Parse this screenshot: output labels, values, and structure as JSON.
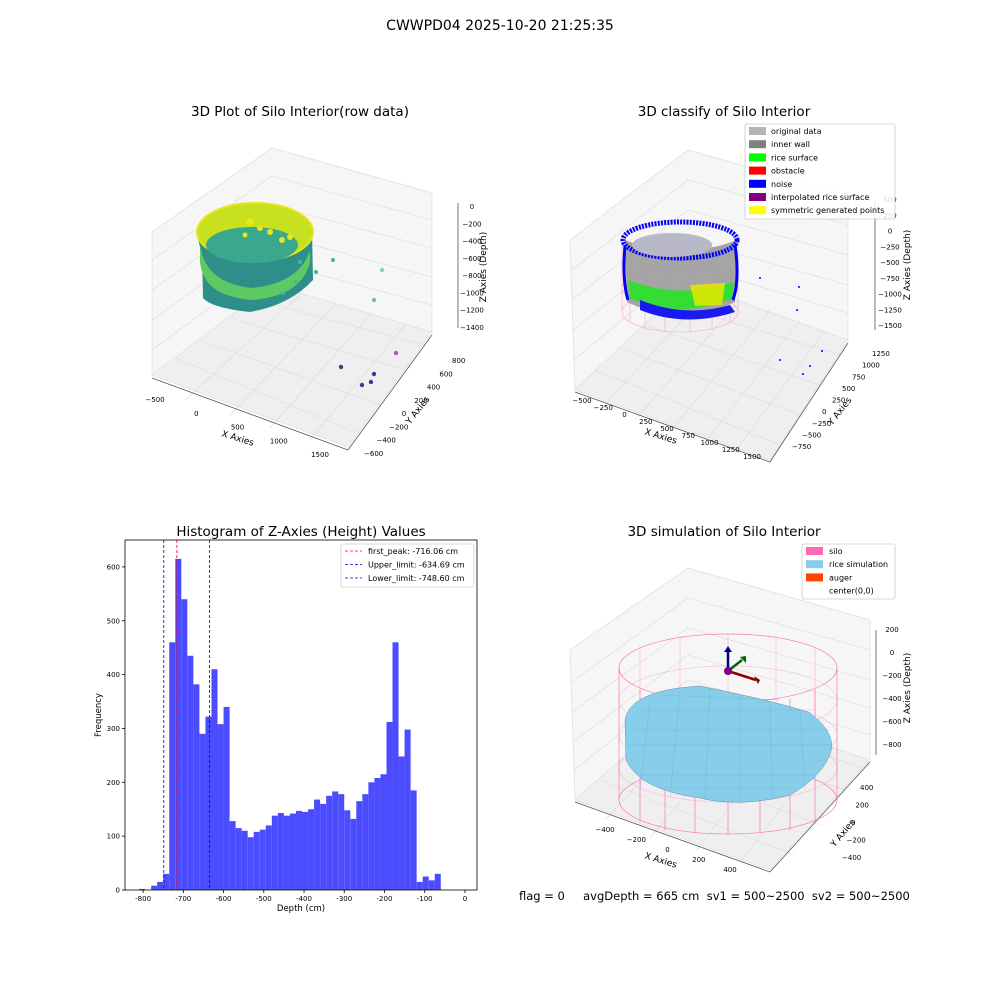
{
  "figure": {
    "suptitle": "CWWPD04 2025-10-20 21:25:35",
    "footer": "flag = 0     avgDepth = 665 cm  sv1 = 500~2500  sv2 = 500~2500"
  },
  "colors": {
    "hist_bar": "#4c4cff",
    "first_peak_line": "#ff0000",
    "limit_line": "#0000cc",
    "original_data": "#b3b3b3",
    "inner_wall": "#808080",
    "rice_surface": "#00ff00",
    "obstacle": "#ff0000",
    "noise": "#0000ff",
    "interpolated_rice_surface": "#800080",
    "symmetric_generated_points": "#ffff00",
    "silo": "#ff69b4",
    "rice_simulation": "#87ceeb",
    "auger": "#ff4500"
  },
  "chart_data": [
    {
      "type": "scatter",
      "projection": "3d",
      "title": "3D Plot of Silo Interior(row data)",
      "xlabel": "X Axies",
      "ylabel": "Y Axies",
      "zlabel": "Z Axies (Depth)",
      "x_ticks": [
        "−500",
        "0",
        "500",
        "1000",
        "1500"
      ],
      "y_ticks": [
        "−600",
        "−400",
        "−200",
        "0",
        "200",
        "400",
        "600",
        "800"
      ],
      "z_ticks": [
        "0",
        "−200",
        "−400",
        "−600",
        "−800",
        "−1000",
        "−1200",
        "−1400"
      ],
      "colormap": "viridis",
      "grid": true
    },
    {
      "type": "scatter",
      "projection": "3d",
      "title": "3D classify of Silo Interior",
      "xlabel": "X Axies",
      "ylabel": "Y Axies",
      "zlabel": "Z Axies (Depth)",
      "x_ticks": [
        "−500",
        "−250",
        "0",
        "250",
        "500",
        "750",
        "1000",
        "1250",
        "1500"
      ],
      "y_ticks": [
        "−750",
        "−500",
        "−250",
        "0",
        "250",
        "500",
        "750",
        "1000",
        "1250"
      ],
      "z_ticks": [
        "500",
        "250",
        "0",
        "−250",
        "−500",
        "−750",
        "−1000",
        "−1250",
        "−1500"
      ],
      "legend": [
        "original data",
        "inner wall",
        "rice surface",
        "obstacle",
        "noise",
        "interpolated rice surface",
        "symmetric generated points"
      ],
      "legend_position": "top-right",
      "grid": true
    },
    {
      "type": "bar",
      "title": "Histogram of Z-Axies (Height) Values",
      "xlabel": "Depth (cm)",
      "ylabel": "Frequency",
      "xlim": [
        -845,
        30
      ],
      "ylim": [
        0,
        650
      ],
      "x_ticks": [
        -800,
        -700,
        -600,
        -500,
        -400,
        -300,
        -200,
        -100,
        0
      ],
      "y_ticks": [
        0,
        100,
        200,
        300,
        400,
        500,
        600
      ],
      "bins_start": -810,
      "bin_width": 15,
      "values": [
        2,
        0,
        8,
        15,
        30,
        460,
        615,
        540,
        435,
        382,
        290,
        322,
        410,
        308,
        340,
        128,
        115,
        110,
        98,
        108,
        112,
        120,
        138,
        143,
        138,
        142,
        147,
        145,
        150,
        168,
        160,
        175,
        183,
        178,
        148,
        132,
        165,
        178,
        200,
        208,
        215,
        312,
        460,
        248,
        298,
        185,
        15,
        25,
        18,
        30
      ],
      "vlines": [
        {
          "label": "first_peak: -716.06 cm",
          "x": -716.06
        },
        {
          "label": "Upper_limit: -634.69 cm",
          "x": -634.69
        },
        {
          "label": "Lower_limit: -748.60 cm",
          "x": -748.6
        }
      ],
      "legend_position": "top-right"
    },
    {
      "type": "surface",
      "projection": "3d",
      "title": "3D simulation of Silo Interior",
      "xlabel": "X Axies",
      "ylabel": "Y Axies",
      "zlabel": "Z Axies (Depth)",
      "x_ticks": [
        "−400",
        "−200",
        "0",
        "200",
        "400"
      ],
      "y_ticks": [
        "−400",
        "−200",
        "0",
        "200",
        "400"
      ],
      "z_ticks": [
        "200",
        "0",
        "−200",
        "−400",
        "−600",
        "−800"
      ],
      "legend": [
        "silo",
        "rice simulation",
        "auger",
        "center(0,0)"
      ],
      "legend_position": "top-right",
      "grid": true
    }
  ]
}
